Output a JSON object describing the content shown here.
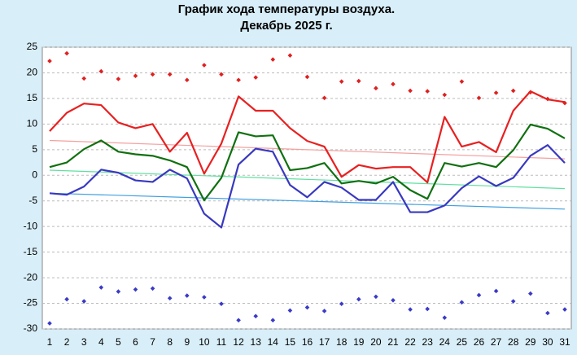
{
  "chart_data": {
    "type": "line",
    "title": "График хода температуры воздуха.",
    "subtitle": "Декабрь 2025 г.",
    "x": [
      1,
      2,
      3,
      4,
      5,
      6,
      7,
      8,
      9,
      10,
      11,
      12,
      13,
      14,
      15,
      16,
      17,
      18,
      19,
      20,
      21,
      22,
      23,
      24,
      25,
      26,
      27,
      28,
      29,
      30,
      31
    ],
    "xlim": [
      1,
      31
    ],
    "ylim": [
      -30,
      25
    ],
    "yticks": [
      -30,
      -25,
      -20,
      -15,
      -10,
      -5,
      0,
      5,
      10,
      15,
      20,
      25
    ],
    "grid": true,
    "series": [
      {
        "style": "points",
        "color": "#e02020",
        "values": [
          22.3,
          23.8,
          18.9,
          20.3,
          18.8,
          19.4,
          19.7,
          19.7,
          18.6,
          21.5,
          19.7,
          18.6,
          19.1,
          22.6,
          23.4,
          19.2,
          15.1,
          18.3,
          18.4,
          17,
          17.8,
          16.5,
          16.4,
          15.7,
          18.3,
          15.1,
          16.1,
          16.5,
          16.2,
          14.9,
          14.1
        ]
      },
      {
        "style": "points",
        "color": "#3a3ac8",
        "values": [
          -28.9,
          -24.2,
          -24.6,
          -21.9,
          -22.7,
          -22.3,
          -22.1,
          -24,
          -23.5,
          -23.8,
          -25.1,
          -28.3,
          -27.5,
          -28.3,
          -26.4,
          -25.8,
          -26.5,
          -25.1,
          -24.2,
          -23.7,
          -24.4,
          -26.2,
          -26.1,
          -27.8,
          -24.8,
          -23.4,
          -22.6,
          -24.6,
          -23.1,
          -26.9,
          -26.2
        ]
      },
      {
        "style": "trend",
        "color": "#f4a0a0",
        "x": [
          1,
          31
        ],
        "values": [
          6.8,
          3.2
        ]
      },
      {
        "style": "trend",
        "color": "#60e0a0",
        "x": [
          1,
          31
        ],
        "values": [
          1,
          -2.6
        ]
      },
      {
        "style": "trend",
        "color": "#40a0e0",
        "x": [
          1,
          31
        ],
        "values": [
          -3.5,
          -6.6
        ]
      },
      {
        "style": "line",
        "color": "#e82020",
        "values": [
          8.6,
          12.2,
          14,
          13.7,
          10.3,
          9.2,
          10,
          4.6,
          8.3,
          0.3,
          6.2,
          15.4,
          12.6,
          12.6,
          9.2,
          6.7,
          5.6,
          -0.3,
          2,
          1.3,
          1.6,
          1.6,
          -1.4,
          11.4,
          5.6,
          6.5,
          4.5,
          12.6,
          16.4,
          14.8,
          14.3
        ]
      },
      {
        "style": "line",
        "color": "#107010",
        "values": [
          1.6,
          2.5,
          5.1,
          6.8,
          4.6,
          4.1,
          3.8,
          2.9,
          1.6,
          -4.9,
          -0.5,
          8.4,
          7.6,
          7.8,
          1,
          1.4,
          2.4,
          -1.6,
          -1.1,
          -1.6,
          -0.3,
          -2.9,
          -4.6,
          2.4,
          1.7,
          2.4,
          1.6,
          4.9,
          9.9,
          9.1,
          7.2
        ]
      },
      {
        "style": "line",
        "color": "#3838c0",
        "values": [
          -3.5,
          -3.8,
          -2.2,
          1.1,
          0.5,
          -1,
          -1.3,
          1.1,
          -0.6,
          -7.5,
          -10.2,
          2.1,
          5.2,
          4.6,
          -1.9,
          -4.3,
          -1.3,
          -2.4,
          -4.8,
          -4.8,
          -1.3,
          -7.2,
          -7.2,
          -5.9,
          -2.5,
          -0.2,
          -2.1,
          -0.5,
          3.8,
          5.9,
          2.4
        ]
      }
    ]
  }
}
